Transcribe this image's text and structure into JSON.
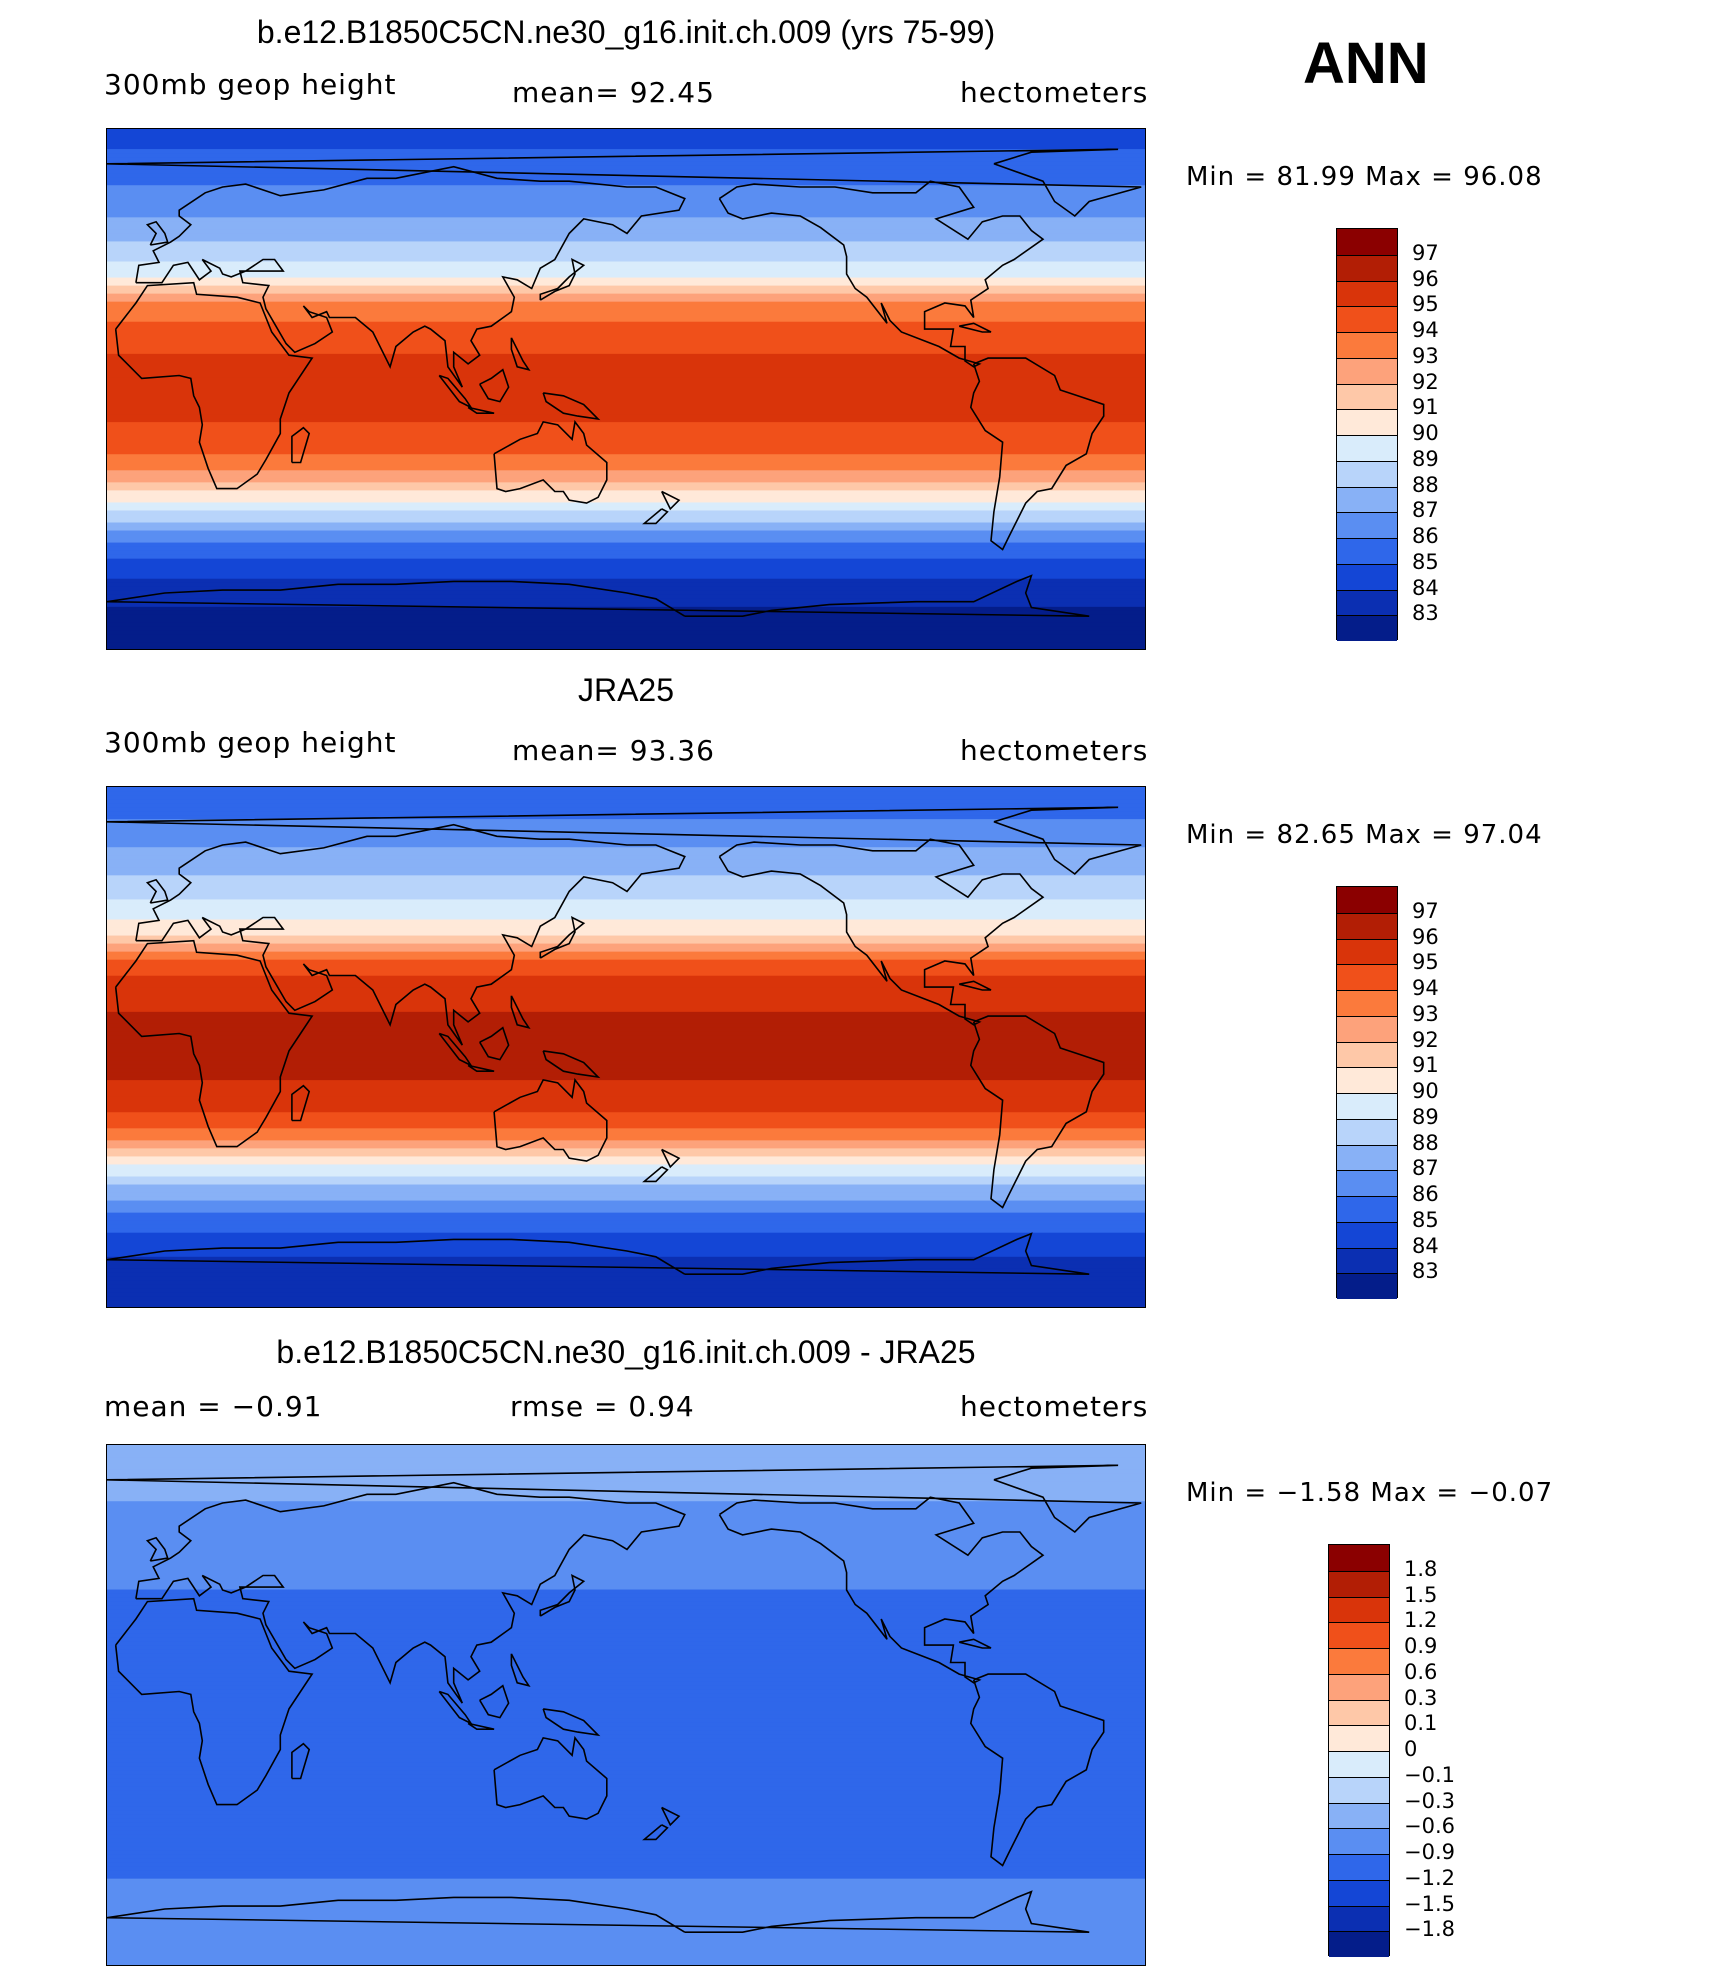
{
  "season": "ANN",
  "panels": [
    {
      "id": "model",
      "title": "b.e12.B1850C5CN.ne30_g16.init.ch.009 (yrs 75-99)",
      "left_label": "300mb  geop  height",
      "center_label": "mean=   92.45",
      "right_label": "hectometers",
      "minmax": "Min  =    81.99  Max  =    96.08",
      "min": 81.99,
      "max": 96.08,
      "mean": 92.45,
      "legend_levels": [
        "97",
        "96",
        "95",
        "94",
        "93",
        "92",
        "91",
        "90",
        "89",
        "88",
        "87",
        "86",
        "85",
        "84",
        "83"
      ],
      "legend_colors": [
        "#8b0000",
        "#b21e05",
        "#d9340a",
        "#f0501a",
        "#fb7a3c",
        "#fda27b",
        "#fec8a8",
        "#ffe9d9",
        "#d9ecfb",
        "#b8d4fa",
        "#88b1f6",
        "#5a8ef2",
        "#2f67ea",
        "#1446d6",
        "#0b2fb2",
        "#041d8a"
      ],
      "zonal_profile": {
        "lat_deg": [
          90,
          75,
          65,
          55,
          45,
          40,
          35,
          30,
          20,
          10,
          0,
          -10,
          -20,
          -25,
          -30,
          -35,
          -40,
          -45,
          -55,
          -65,
          -75,
          -90
        ],
        "value_hm": [
          84.5,
          85.5,
          86.5,
          87.5,
          88.8,
          89.8,
          91.2,
          93.0,
          94.6,
          95.1,
          95.2,
          95.1,
          94.4,
          93.5,
          92.5,
          91.0,
          89.5,
          88.0,
          85.5,
          84.0,
          83.0,
          82.5
        ]
      }
    },
    {
      "id": "obs",
      "title": "JRA25",
      "left_label": "300mb  geop  height",
      "center_label": "mean=   93.36",
      "right_label": "hectometers",
      "minmax": "Min  =    82.65  Max  =    97.04",
      "min": 82.65,
      "max": 97.04,
      "mean": 93.36,
      "legend_levels": [
        "97",
        "96",
        "95",
        "94",
        "93",
        "92",
        "91",
        "90",
        "89",
        "88",
        "87",
        "86",
        "85",
        "84",
        "83"
      ],
      "legend_colors": [
        "#8b0000",
        "#b21e05",
        "#d9340a",
        "#f0501a",
        "#fb7a3c",
        "#fda27b",
        "#fec8a8",
        "#ffe9d9",
        "#d9ecfb",
        "#b8d4fa",
        "#88b1f6",
        "#5a8ef2",
        "#2f67ea",
        "#1446d6",
        "#0b2fb2",
        "#041d8a"
      ],
      "zonal_profile": {
        "lat_deg": [
          90,
          75,
          65,
          55,
          45,
          40,
          35,
          30,
          20,
          10,
          0,
          -10,
          -20,
          -25,
          -30,
          -35,
          -40,
          -45,
          -55,
          -65,
          -75,
          -90
        ],
        "value_hm": [
          85.0,
          86.3,
          87.5,
          88.5,
          89.8,
          90.8,
          92.2,
          94.2,
          95.7,
          96.1,
          96.2,
          96.1,
          95.5,
          94.6,
          93.4,
          91.8,
          90.2,
          88.6,
          86.3,
          84.8,
          83.6,
          83.0
        ]
      }
    },
    {
      "id": "diff",
      "title": "b.e12.B1850C5CN.ne30_g16.init.ch.009 - JRA25",
      "left_label": "mean  =    −0.91",
      "center_label": "rmse  =     0.94",
      "right_label": "hectometers",
      "minmax": "Min  =   −1.58  Max  =    −0.07",
      "min": -1.58,
      "max": -0.07,
      "mean": -0.91,
      "rmse": 0.94,
      "legend_levels": [
        "1.8",
        "1.5",
        "1.2",
        "0.9",
        "0.6",
        "0.3",
        "0.1",
        "0",
        "−0.1",
        "−0.3",
        "−0.6",
        "−0.9",
        "−1.2",
        "−1.5",
        "−1.8"
      ],
      "legend_colors": [
        "#8b0000",
        "#b21e05",
        "#d9340a",
        "#f0501a",
        "#fb7a3c",
        "#fda27b",
        "#fec8a8",
        "#ffe9d9",
        "#d9ecfb",
        "#b8d4fa",
        "#88b1f6",
        "#5a8ef2",
        "#2f67ea",
        "#1446d6",
        "#0b2fb2",
        "#041d8a"
      ],
      "zonal_profile": {
        "lat_deg": [
          90,
          80,
          70,
          60,
          50,
          40,
          30,
          20,
          10,
          0,
          -10,
          -20,
          -30,
          -40,
          -50,
          -60,
          -70,
          -90
        ],
        "value_hm": [
          -0.35,
          -0.45,
          -0.6,
          -0.7,
          -0.85,
          -0.9,
          -0.95,
          -1.0,
          -1.0,
          -1.0,
          -0.95,
          -0.9,
          -1.0,
          -1.1,
          -1.2,
          -0.9,
          -0.7,
          -0.6
        ]
      }
    }
  ]
}
